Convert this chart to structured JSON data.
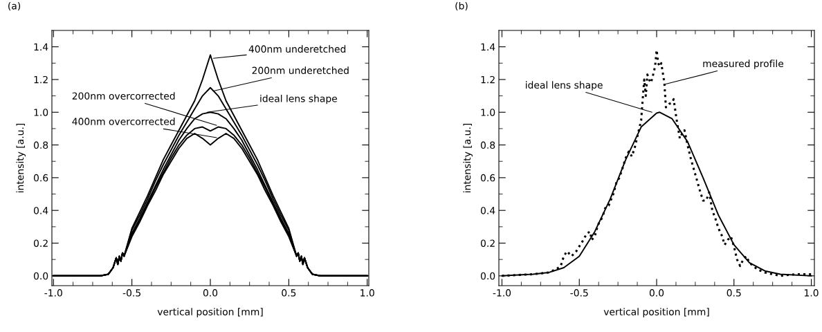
{
  "chart_data": [
    {
      "type": "line",
      "title": "(a)",
      "xlabel": "vertical position [mm]",
      "ylabel": "intensity [a.u.]",
      "x": [
        -1,
        -0.7,
        -0.65,
        -0.62,
        -0.6,
        -0.59,
        -0.58,
        -0.57,
        -0.56,
        -0.55,
        -0.5,
        -0.45,
        -0.4,
        -0.35,
        -0.3,
        -0.25,
        -0.2,
        -0.15,
        -0.1,
        -0.05,
        0,
        0.05,
        0.1,
        0.15,
        0.2,
        0.25,
        0.3,
        0.35,
        0.4,
        0.45,
        0.5,
        0.55,
        0.56,
        0.57,
        0.58,
        0.59,
        0.6,
        0.62,
        0.65,
        0.7,
        1
      ],
      "series": [
        {
          "color": "#000000",
          "line_style": "solid",
          "values": [
            0,
            0,
            0.01,
            0.05,
            0.11,
            0.07,
            0.12,
            0.09,
            0.14,
            0.12,
            0.29,
            0.39,
            0.49,
            0.6,
            0.71,
            0.8,
            0.89,
            0.98,
            1.07,
            1.2,
            1.35,
            1.2,
            1.07,
            0.98,
            0.89,
            0.8,
            0.71,
            0.6,
            0.49,
            0.39,
            0.29,
            0.12,
            0.14,
            0.09,
            0.12,
            0.07,
            0.11,
            0.05,
            0.01,
            0,
            0
          ]
        },
        {
          "color": "#000000",
          "line_style": "solid",
          "values": [
            0,
            0,
            0.01,
            0.05,
            0.11,
            0.07,
            0.12,
            0.09,
            0.14,
            0.12,
            0.28,
            0.37,
            0.47,
            0.58,
            0.68,
            0.77,
            0.86,
            0.94,
            1.02,
            1.1,
            1.15,
            1.1,
            1.02,
            0.94,
            0.86,
            0.77,
            0.68,
            0.58,
            0.47,
            0.37,
            0.28,
            0.12,
            0.14,
            0.09,
            0.12,
            0.07,
            0.11,
            0.05,
            0.01,
            0,
            0
          ]
        },
        {
          "color": "#000000",
          "line_style": "solid",
          "values": [
            0,
            0,
            0.01,
            0.05,
            0.11,
            0.07,
            0.12,
            0.09,
            0.14,
            0.12,
            0.26,
            0.35,
            0.45,
            0.55,
            0.65,
            0.74,
            0.83,
            0.9,
            0.96,
            0.99,
            1.0,
            0.99,
            0.96,
            0.9,
            0.83,
            0.74,
            0.65,
            0.55,
            0.45,
            0.35,
            0.26,
            0.12,
            0.14,
            0.09,
            0.12,
            0.07,
            0.11,
            0.05,
            0.01,
            0,
            0
          ]
        },
        {
          "color": "#000000",
          "line_style": "solid",
          "values": [
            0,
            0,
            0.01,
            0.05,
            0.11,
            0.07,
            0.12,
            0.09,
            0.14,
            0.12,
            0.25,
            0.34,
            0.44,
            0.54,
            0.63,
            0.72,
            0.8,
            0.86,
            0.9,
            0.91,
            0.885,
            0.91,
            0.9,
            0.86,
            0.8,
            0.72,
            0.63,
            0.54,
            0.44,
            0.34,
            0.25,
            0.12,
            0.14,
            0.09,
            0.12,
            0.07,
            0.11,
            0.05,
            0.01,
            0,
            0
          ]
        },
        {
          "color": "#000000",
          "line_style": "solid",
          "values": [
            0,
            0,
            0.01,
            0.05,
            0.11,
            0.07,
            0.12,
            0.09,
            0.14,
            0.12,
            0.24,
            0.33,
            0.43,
            0.52,
            0.62,
            0.7,
            0.78,
            0.84,
            0.87,
            0.84,
            0.8,
            0.84,
            0.87,
            0.84,
            0.78,
            0.7,
            0.62,
            0.52,
            0.43,
            0.33,
            0.24,
            0.12,
            0.14,
            0.09,
            0.12,
            0.07,
            0.11,
            0.05,
            0.01,
            0,
            0
          ]
        }
      ],
      "annotations": [
        {
          "text": "400nm underetched",
          "x": 0.02,
          "y": 1.33
        },
        {
          "text": "200nm underetched",
          "x": 0.02,
          "y": 1.13
        },
        {
          "text": "ideal lens shape",
          "x": -0.02,
          "y": 1.0
        },
        {
          "text": "200nm overcorrected",
          "x": 0.04,
          "y": 0.92
        },
        {
          "text": "400nm overcorrected",
          "x": 0.04,
          "y": 0.845
        }
      ],
      "xlim": [
        -1.01,
        1.01
      ],
      "ylim": [
        -0.06,
        1.5
      ],
      "xticks": [
        {
          "value": -1,
          "label": "-1.0"
        },
        {
          "value": -0.5,
          "label": "-0.5"
        },
        {
          "value": 0,
          "label": "0.0"
        },
        {
          "value": 0.5,
          "label": "0.5"
        },
        {
          "value": 1,
          "label": "1.0"
        }
      ],
      "yticks": [
        {
          "value": 0,
          "label": "0.0"
        },
        {
          "value": 0.2,
          "label": "0.2"
        },
        {
          "value": 0.4,
          "label": "0.4"
        },
        {
          "value": 0.6,
          "label": "0.6"
        },
        {
          "value": 0.8,
          "label": "0.8"
        },
        {
          "value": 1.0,
          "label": "1.0"
        },
        {
          "value": 1.2,
          "label": "1.2"
        },
        {
          "value": 1.4,
          "label": "1.4"
        }
      ],
      "marker": "none"
    },
    {
      "type": "line",
      "title": "(b)",
      "xlabel": "vertical position [mm]",
      "ylabel": "intensity [a.u.]",
      "series": [
        {
          "color": "#000000",
          "line_style": "dotted",
          "x": [
            -1.0,
            -0.9,
            -0.8,
            -0.7,
            -0.65,
            -0.62,
            -0.6,
            -0.58,
            -0.55,
            -0.52,
            -0.48,
            -0.45,
            -0.43,
            -0.42,
            -0.4,
            -0.38,
            -0.35,
            -0.33,
            -0.31,
            -0.28,
            -0.26,
            -0.24,
            -0.22,
            -0.2,
            -0.18,
            -0.16,
            -0.14,
            -0.12,
            -0.1,
            -0.09,
            -0.08,
            -0.07,
            -0.06,
            -0.04,
            -0.03,
            -0.01,
            0.0,
            0.01,
            0.02,
            0.03,
            0.05,
            0.06,
            0.08,
            0.1,
            0.11,
            0.13,
            0.15,
            0.17,
            0.18,
            0.2,
            0.22,
            0.25,
            0.28,
            0.3,
            0.32,
            0.34,
            0.36,
            0.38,
            0.4,
            0.42,
            0.44,
            0.46,
            0.48,
            0.5,
            0.52,
            0.54,
            0.56,
            0.58,
            0.6,
            0.65,
            0.7,
            0.8,
            0.9,
            1.0
          ],
          "values": [
            0.0,
            0.005,
            0.01,
            0.02,
            0.04,
            0.06,
            0.12,
            0.15,
            0.12,
            0.15,
            0.21,
            0.26,
            0.27,
            0.22,
            0.24,
            0.31,
            0.36,
            0.42,
            0.43,
            0.5,
            0.57,
            0.6,
            0.66,
            0.72,
            0.76,
            0.73,
            0.79,
            0.87,
            0.95,
            1.08,
            1.2,
            1.1,
            1.23,
            1.18,
            1.2,
            1.28,
            1.38,
            1.3,
            1.28,
            1.3,
            1.18,
            1.03,
            1.05,
            1.06,
            1.08,
            0.95,
            0.84,
            0.88,
            0.89,
            0.8,
            0.72,
            0.62,
            0.52,
            0.46,
            0.46,
            0.51,
            0.4,
            0.35,
            0.29,
            0.25,
            0.19,
            0.22,
            0.24,
            0.18,
            0.1,
            0.06,
            0.1,
            0.12,
            0.08,
            0.04,
            0.02,
            0.0,
            0.01,
            0.01
          ]
        },
        {
          "color": "#000000",
          "line_style": "solid",
          "x": [
            -1.0,
            -0.8,
            -0.7,
            -0.6,
            -0.5,
            -0.4,
            -0.3,
            -0.2,
            -0.1,
            0.0,
            0.02,
            0.1,
            0.2,
            0.3,
            0.4,
            0.5,
            0.6,
            0.7,
            0.8,
            1.0
          ],
          "values": [
            0.0,
            0.01,
            0.02,
            0.05,
            0.12,
            0.27,
            0.47,
            0.71,
            0.91,
            0.995,
            1.0,
            0.96,
            0.82,
            0.6,
            0.37,
            0.19,
            0.08,
            0.03,
            0.01,
            0.0
          ]
        }
      ],
      "annotations": [
        {
          "text": "measured profile",
          "x": 0.05,
          "y": 1.17
        },
        {
          "text": "ideal lens shape",
          "x": -0.03,
          "y": 1.0
        }
      ],
      "xlim": [
        -1.02,
        1.02
      ],
      "ylim": [
        -0.06,
        1.5
      ],
      "xticks": [
        {
          "value": -1,
          "label": "-1.0"
        },
        {
          "value": -0.5,
          "label": "-0.5"
        },
        {
          "value": 0,
          "label": "0.0"
        },
        {
          "value": 0.5,
          "label": "0.5"
        },
        {
          "value": 1,
          "label": "1.0"
        }
      ],
      "yticks": [
        {
          "value": 0,
          "label": "0.0"
        },
        {
          "value": 0.2,
          "label": "0.2"
        },
        {
          "value": 0.4,
          "label": "0.4"
        },
        {
          "value": 0.6,
          "label": "0.6"
        },
        {
          "value": 0.8,
          "label": "0.8"
        },
        {
          "value": 1.0,
          "label": "1.0"
        },
        {
          "value": 1.2,
          "label": "1.2"
        },
        {
          "value": 1.4,
          "label": "1.4"
        }
      ],
      "marker": "none"
    }
  ]
}
